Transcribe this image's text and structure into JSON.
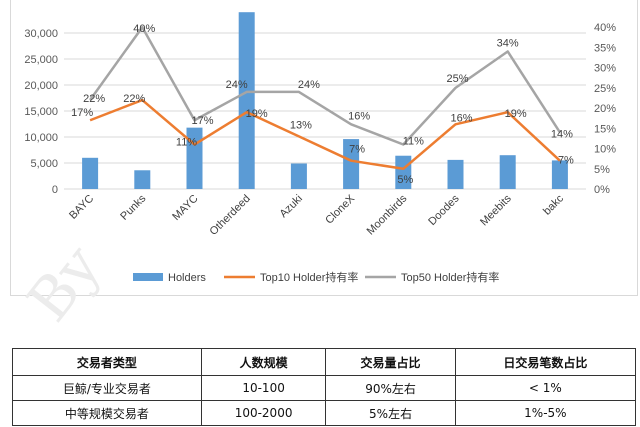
{
  "chart_data": {
    "type": "bar+line",
    "categories": [
      "BAYC",
      "Punks",
      "MAYC",
      "Otherdeed",
      "Azuki",
      "CloneX",
      "Moonbirds",
      "Doodes",
      "Meebits",
      "bakc"
    ],
    "series": [
      {
        "name": "Holders",
        "type": "bar",
        "axis": "left",
        "color": "#5b9bd5",
        "values": [
          6000,
          3600,
          11800,
          34000,
          4900,
          9600,
          6400,
          5600,
          6500,
          5500
        ]
      },
      {
        "name": "Top10 Holder持有率",
        "type": "line",
        "axis": "right",
        "color": "#ed7d31",
        "values": [
          17,
          22,
          11,
          19,
          13,
          7,
          5,
          16,
          19,
          7
        ],
        "labels": [
          "17%",
          "22%",
          "11%",
          "19%",
          "13%",
          "7%",
          "5%",
          "16%",
          "19%",
          "7%"
        ]
      },
      {
        "name": "Top50 Holder持有率",
        "type": "line",
        "axis": "right",
        "color": "#a5a5a5",
        "values": [
          22,
          40,
          17,
          24,
          24,
          16,
          11,
          25,
          34,
          14
        ],
        "labels": [
          "22%",
          "40%",
          "17%",
          "24%",
          "24%",
          "16%",
          "11%",
          "25%",
          "34%",
          "14%"
        ]
      }
    ],
    "ylim_left": [
      0,
      35000
    ],
    "yticks_left": [
      "0",
      "5,000",
      "10,000",
      "15,000",
      "20,000",
      "25,000",
      "30,000"
    ],
    "ylim_right": [
      0,
      45
    ],
    "yticks_right": [
      "0%",
      "5%",
      "10%",
      "15%",
      "20%",
      "25%",
      "30%",
      "35%",
      "40%"
    ],
    "legend_position": "bottom"
  },
  "watermark": "By",
  "table": {
    "headers": [
      "交易者类型",
      "人数规模",
      "交易量占比",
      "日交易笔数占比"
    ],
    "rows": [
      [
        "巨鲸/专业交易者",
        "10-100",
        "90%左右",
        "< 1%"
      ],
      [
        "中等规模交易者",
        "100-2000",
        "5%左右",
        "1%-5%"
      ]
    ]
  }
}
